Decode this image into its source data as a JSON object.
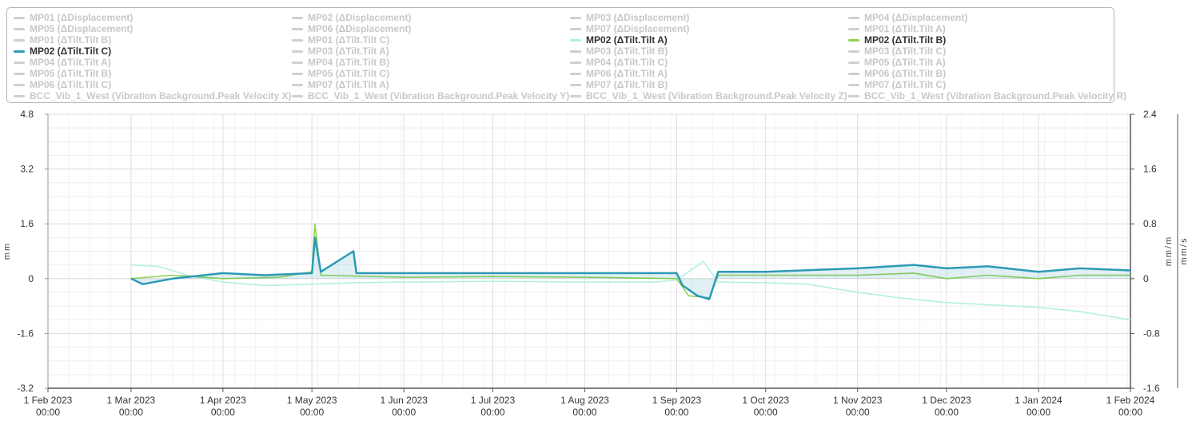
{
  "legend": {
    "columns": [
      [
        {
          "label": "MP01 (ΔDisplacement)",
          "active": false
        },
        {
          "label": "MP05 (ΔDisplacement)",
          "active": false
        },
        {
          "label": "MP01 (ΔTilt.Tilt B)",
          "active": false
        },
        {
          "label": "MP02 (ΔTilt.Tilt C)",
          "active": true,
          "color": "#2c9ab5"
        },
        {
          "label": "MP04 (ΔTilt.Tilt A)",
          "active": false
        },
        {
          "label": "MP05 (ΔTilt.Tilt B)",
          "active": false
        },
        {
          "label": "MP06 (ΔTilt.Tilt C)",
          "active": false
        },
        {
          "label": "BCC_Vib_1_West (Vibration Background.Peak Velocity X)",
          "active": false
        }
      ],
      [
        {
          "label": "MP02 (ΔDisplacement)",
          "active": false
        },
        {
          "label": "MP06 (ΔDisplacement)",
          "active": false
        },
        {
          "label": "MP01 (ΔTilt.Tilt C)",
          "active": false
        },
        {
          "label": "MP03 (ΔTilt.Tilt A)",
          "active": false
        },
        {
          "label": "MP04 (ΔTilt.Tilt B)",
          "active": false
        },
        {
          "label": "MP05 (ΔTilt.Tilt C)",
          "active": false
        },
        {
          "label": "MP07 (ΔTilt.Tilt A)",
          "active": false
        },
        {
          "label": "BCC_Vib_1_West (Vibration Background.Peak Velocity Y)",
          "active": false
        }
      ],
      [
        {
          "label": "MP03 (ΔDisplacement)",
          "active": false
        },
        {
          "label": "MP07 (ΔDisplacement)",
          "active": false
        },
        {
          "label": "MP02 (ΔTilt.Tilt A)",
          "active": true,
          "color": "#b4efe3"
        },
        {
          "label": "MP03 (ΔTilt.Tilt B)",
          "active": false
        },
        {
          "label": "MP04 (ΔTilt.Tilt C)",
          "active": false
        },
        {
          "label": "MP06 (ΔTilt.Tilt A)",
          "active": false
        },
        {
          "label": "MP07 (ΔTilt.Tilt B)",
          "active": false
        },
        {
          "label": "BCC_Vib_1_West (Vibration Background.Peak Velocity Z)",
          "active": false
        }
      ],
      [
        {
          "label": "MP04 (ΔDisplacement)",
          "active": false
        },
        {
          "label": "MP01 (ΔTilt.Tilt A)",
          "active": false
        },
        {
          "label": "MP02 (ΔTilt.Tilt B)",
          "active": true,
          "color": "#8fd14f"
        },
        {
          "label": "MP03 (ΔTilt.Tilt C)",
          "active": false
        },
        {
          "label": "MP05 (ΔTilt.Tilt A)",
          "active": false
        },
        {
          "label": "MP06 (ΔTilt.Tilt B)",
          "active": false
        },
        {
          "label": "MP07 (ΔTilt.Tilt C)",
          "active": false
        },
        {
          "label": "BCC_Vib_1_West (Vibration Background.Peak Velocity R)",
          "active": false
        }
      ]
    ]
  },
  "chart_data": {
    "type": "line",
    "title": "",
    "xlabel": "",
    "ylabel": "mm",
    "y2label": "mm/m",
    "y3label": "mm/s",
    "xlim": [
      "2023-02-01",
      "2024-02-01"
    ],
    "ylim": [
      -3.2,
      4.8
    ],
    "y2lim": [
      -1.6,
      2.4
    ],
    "y_ticks": [
      "4.8",
      "3.2",
      "1.6",
      "0",
      "-1.6",
      "-3.2"
    ],
    "y2_ticks": [
      "2.4",
      "1.6",
      "0.8",
      "0",
      "-0.8",
      "-1.6"
    ],
    "x_ticks": [
      {
        "date": "2023-02-01",
        "label": "1 Feb 2023",
        "time": "00:00"
      },
      {
        "date": "2023-03-01",
        "label": "1 Mar 2023",
        "time": "00:00"
      },
      {
        "date": "2023-04-01",
        "label": "1 Apr 2023",
        "time": "00:00"
      },
      {
        "date": "2023-05-01",
        "label": "1 May 2023",
        "time": "00:00"
      },
      {
        "date": "2023-06-01",
        "label": "1 Jun 2023",
        "time": "00:00"
      },
      {
        "date": "2023-07-01",
        "label": "1 Jul 2023",
        "time": "00:00"
      },
      {
        "date": "2023-08-01",
        "label": "1 Aug 2023",
        "time": "00:00"
      },
      {
        "date": "2023-09-01",
        "label": "1 Sep 2023",
        "time": "00:00"
      },
      {
        "date": "2023-10-01",
        "label": "1 Oct 2023",
        "time": "00:00"
      },
      {
        "date": "2023-11-01",
        "label": "1 Nov 2023",
        "time": "00:00"
      },
      {
        "date": "2023-12-01",
        "label": "1 Dec 2023",
        "time": "00:00"
      },
      {
        "date": "2024-01-01",
        "label": "1 Jan 2024",
        "time": "00:00"
      },
      {
        "date": "2024-02-01",
        "label": "1 Feb 2024",
        "time": "00:00"
      }
    ],
    "grid": true,
    "series": [
      {
        "name": "MP02 (ΔTilt.Tilt A)",
        "axis": "mm/m",
        "color": "#b4efe3",
        "points": [
          [
            "2023-03-01",
            0.2
          ],
          [
            "2023-03-10",
            0.18
          ],
          [
            "2023-03-20",
            0.05
          ],
          [
            "2023-04-01",
            -0.05
          ],
          [
            "2023-04-15",
            -0.1
          ],
          [
            "2023-05-01",
            -0.08
          ],
          [
            "2023-05-15",
            -0.06
          ],
          [
            "2023-06-01",
            -0.05
          ],
          [
            "2023-07-01",
            -0.04
          ],
          [
            "2023-08-01",
            -0.05
          ],
          [
            "2023-08-25",
            -0.05
          ],
          [
            "2023-09-01",
            -0.02
          ],
          [
            "2023-09-05",
            0.1
          ],
          [
            "2023-09-10",
            0.25
          ],
          [
            "2023-09-15",
            -0.05
          ],
          [
            "2023-10-01",
            -0.06
          ],
          [
            "2023-10-15",
            -0.08
          ],
          [
            "2023-11-01",
            -0.2
          ],
          [
            "2023-11-15",
            -0.28
          ],
          [
            "2023-12-01",
            -0.35
          ],
          [
            "2023-12-15",
            -0.38
          ],
          [
            "2024-01-01",
            -0.42
          ],
          [
            "2024-01-15",
            -0.48
          ],
          [
            "2024-02-01",
            -0.6
          ]
        ]
      },
      {
        "name": "MP02 (ΔTilt.Tilt B)",
        "axis": "mm/m",
        "color": "#8fd14f",
        "points": [
          [
            "2023-03-01",
            0.0
          ],
          [
            "2023-03-15",
            0.05
          ],
          [
            "2023-04-01",
            0.0
          ],
          [
            "2023-04-20",
            0.02
          ],
          [
            "2023-05-01",
            0.1
          ],
          [
            "2023-05-02",
            0.8
          ],
          [
            "2023-05-04",
            0.05
          ],
          [
            "2023-06-01",
            0.02
          ],
          [
            "2023-07-01",
            0.03
          ],
          [
            "2023-08-01",
            0.02
          ],
          [
            "2023-09-01",
            0.0
          ],
          [
            "2023-09-05",
            -0.25
          ],
          [
            "2023-09-12",
            -0.28
          ],
          [
            "2023-09-15",
            0.05
          ],
          [
            "2023-10-01",
            0.05
          ],
          [
            "2023-11-01",
            0.05
          ],
          [
            "2023-11-20",
            0.08
          ],
          [
            "2023-12-01",
            0.0
          ],
          [
            "2023-12-15",
            0.05
          ],
          [
            "2024-01-01",
            0.0
          ],
          [
            "2024-01-15",
            0.05
          ],
          [
            "2024-02-01",
            0.05
          ]
        ]
      },
      {
        "name": "MP02 (ΔTilt.Tilt C)",
        "axis": "mm/m",
        "color": "#2c9ab5",
        "points": [
          [
            "2023-03-01",
            0.0
          ],
          [
            "2023-03-05",
            -0.08
          ],
          [
            "2023-03-15",
            0.0
          ],
          [
            "2023-04-01",
            0.08
          ],
          [
            "2023-04-15",
            0.05
          ],
          [
            "2023-05-01",
            0.08
          ],
          [
            "2023-05-02",
            0.6
          ],
          [
            "2023-05-04",
            0.1
          ],
          [
            "2023-05-15",
            0.4
          ],
          [
            "2023-05-16",
            0.08
          ],
          [
            "2023-06-01",
            0.08
          ],
          [
            "2023-07-01",
            0.08
          ],
          [
            "2023-08-01",
            0.08
          ],
          [
            "2023-09-01",
            0.08
          ],
          [
            "2023-09-03",
            -0.1
          ],
          [
            "2023-09-08",
            -0.25
          ],
          [
            "2023-09-12",
            -0.3
          ],
          [
            "2023-09-15",
            0.1
          ],
          [
            "2023-10-01",
            0.1
          ],
          [
            "2023-11-01",
            0.15
          ],
          [
            "2023-11-20",
            0.2
          ],
          [
            "2023-12-01",
            0.15
          ],
          [
            "2023-12-15",
            0.18
          ],
          [
            "2024-01-01",
            0.1
          ],
          [
            "2024-01-15",
            0.15
          ],
          [
            "2024-02-01",
            0.12
          ]
        ]
      }
    ]
  }
}
